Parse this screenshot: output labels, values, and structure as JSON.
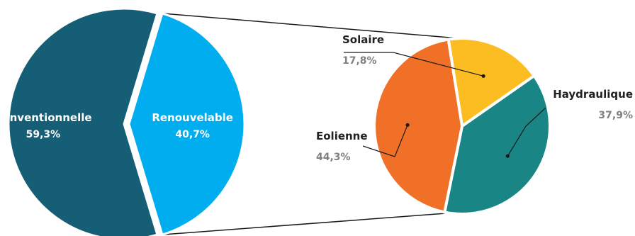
{
  "chart_data": [
    {
      "type": "pie",
      "categories": [
        "Conventionnelle",
        "Renouvelable"
      ],
      "values": [
        59.3,
        40.7
      ],
      "value_labels": [
        "59,3%",
        "40,7%"
      ],
      "colors": [
        "#155E75",
        "#00AEEF"
      ],
      "exploded": "Renouvelable",
      "label_color": "#FFFFFF"
    },
    {
      "type": "pie",
      "categories": [
        "Solaire",
        "Haydraulique",
        "Eolienne"
      ],
      "values": [
        17.8,
        37.9,
        44.3
      ],
      "value_labels": [
        "17,8%",
        "37,9%",
        "44,3%"
      ],
      "colors": [
        "#FBBD22",
        "#1A8585",
        "#F07028"
      ],
      "breakdown_of": "Renouvelable",
      "name_color": "#222222",
      "value_color": "#808080"
    }
  ]
}
